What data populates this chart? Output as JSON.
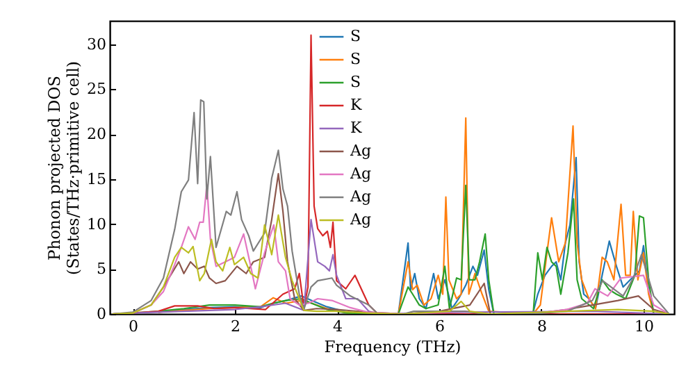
{
  "chart_data": {
    "type": "line",
    "xlabel": "Frequency (THz)",
    "ylabel": "Phonon projected DOS\n(States/THz·primitive cell)",
    "xlim": [
      -0.45,
      10.6
    ],
    "ylim": [
      0,
      32.6
    ],
    "xticks": [
      0,
      2,
      4,
      6,
      8,
      10
    ],
    "yticks": [
      0,
      5,
      10,
      15,
      20,
      25,
      30
    ],
    "grid": false,
    "legend": "top",
    "marker": "none",
    "series": [
      {
        "name": "S",
        "color": "#1f77b4",
        "x": [
          0.5,
          1,
          1.5,
          2,
          2.5,
          2.75,
          3,
          3.3,
          3.5,
          3.8,
          4.2,
          5.2,
          5.39,
          5.44,
          5.52,
          5.61,
          5.74,
          5.89,
          5.98,
          6.11,
          6.25,
          6.38,
          6.52,
          6.66,
          6.75,
          6.88,
          6.97,
          7.07,
          7.84,
          7.93,
          8.07,
          8.2,
          8.29,
          8.38,
          8.47,
          8.56,
          8.68,
          8.74,
          8.83,
          8.93,
          9.06,
          9.19,
          9.33,
          9.47,
          9.6,
          9.74,
          9.92,
          10.0,
          10.1,
          10.2,
          10.5
        ],
        "values": [
          0.2,
          0.5,
          0.7,
          0.8,
          0.7,
          1.2,
          1.5,
          2,
          1.5,
          0.8,
          0.2,
          0,
          7.9,
          2.7,
          4.5,
          1.7,
          0.6,
          4.5,
          1.7,
          3.8,
          0.6,
          1.7,
          3.2,
          5.3,
          4.3,
          7.1,
          2.7,
          0,
          0.2,
          2.2,
          4.3,
          5.3,
          5.8,
          3.8,
          7.9,
          9.9,
          17.4,
          5.8,
          2.2,
          1.7,
          0.6,
          4.3,
          8.1,
          5.3,
          3,
          3.8,
          4.8,
          7.6,
          2.7,
          0,
          0
        ]
      },
      {
        "name": "S",
        "color": "#ff7f0e",
        "x": [
          0.5,
          1,
          1.5,
          2,
          2.5,
          2.75,
          3,
          3.3,
          3.5,
          3.8,
          4.2,
          5.2,
          5.39,
          5.48,
          5.57,
          5.7,
          5.84,
          5.98,
          6.07,
          6.13,
          6.19,
          6.34,
          6.43,
          6.52,
          6.58,
          6.7,
          6.84,
          6.97,
          7.84,
          7.98,
          8.11,
          8.2,
          8.34,
          8.47,
          8.62,
          8.7,
          8.79,
          8.93,
          9.06,
          9.19,
          9.29,
          9.42,
          9.56,
          9.65,
          9.74,
          9.8,
          9.89,
          10.0,
          10.1,
          10.2,
          10.5
        ],
        "values": [
          0.2,
          0.4,
          0.6,
          0.7,
          0.8,
          1.8,
          1.2,
          1.5,
          1.2,
          0.6,
          0.1,
          0,
          5.8,
          2.7,
          3.2,
          1,
          1.7,
          4.3,
          2.2,
          13,
          3.8,
          1.7,
          2.2,
          21.8,
          2.2,
          4.5,
          2.2,
          0.3,
          0,
          1,
          6.8,
          10.7,
          5.8,
          7.9,
          20.9,
          7.9,
          3.8,
          1.7,
          0.6,
          6.3,
          5.8,
          3.8,
          12.2,
          4.3,
          4.3,
          11.4,
          3.8,
          6.8,
          2.2,
          0,
          0
        ]
      },
      {
        "name": "S",
        "color": "#2ca02c",
        "x": [
          -0.4,
          0,
          0.5,
          1,
          1.5,
          2,
          2.5,
          2.75,
          3,
          3.3,
          3.5,
          3.8,
          4.2,
          5.2,
          5.39,
          5.48,
          5.61,
          5.74,
          5.98,
          6.11,
          6.2,
          6.34,
          6.43,
          6.52,
          6.59,
          6.7,
          6.79,
          6.9,
          6.97,
          7.07,
          7.84,
          7.93,
          8.02,
          8.11,
          8.2,
          8.29,
          8.38,
          8.52,
          8.63,
          8.7,
          8.79,
          9.02,
          9.19,
          9.33,
          9.47,
          9.65,
          9.83,
          9.92,
          10.0,
          10.1,
          10.2,
          10.5
        ],
        "values": [
          0,
          0.1,
          0.3,
          0.6,
          1,
          1,
          0.8,
          1.2,
          1.5,
          1.7,
          1.2,
          0.5,
          0.1,
          0,
          3,
          2.2,
          1,
          0.6,
          1,
          5.3,
          0.6,
          4,
          3.8,
          14.3,
          3.8,
          3.8,
          5.8,
          8.9,
          3.8,
          0,
          0,
          6.8,
          3.8,
          7.4,
          5.8,
          5.3,
          2.2,
          6.8,
          12.8,
          3.8,
          1.7,
          0.6,
          3.8,
          2.7,
          2.2,
          1.7,
          4.3,
          10.9,
          10.7,
          3.8,
          0,
          0
        ]
      },
      {
        "name": "K",
        "color": "#d62728",
        "x": [
          -0.4,
          0,
          0.5,
          0.82,
          1.27,
          1.6,
          2,
          2.3,
          2.6,
          2.94,
          3.17,
          3.26,
          3.35,
          3.43,
          3.49,
          3.55,
          3.62,
          3.72,
          3.81,
          3.87,
          3.92,
          3.99,
          4.17,
          4.35,
          4.44,
          4.62,
          4.8,
          10.5
        ],
        "values": [
          0,
          0.1,
          0.3,
          0.9,
          0.9,
          0.6,
          0.7,
          0.6,
          0.5,
          2.2,
          2.8,
          4.5,
          0.7,
          3,
          31,
          12,
          9.5,
          8.7,
          9.2,
          7.4,
          10.2,
          3.7,
          2.8,
          4.3,
          3.2,
          1,
          0,
          0
        ]
      },
      {
        "name": "K",
        "color": "#9467bd",
        "x": [
          -0.4,
          0,
          0.5,
          1,
          1.5,
          2,
          2.5,
          2.99,
          3.35,
          3.49,
          3.62,
          3.76,
          3.85,
          3.92,
          3.99,
          4.17,
          4.4,
          4.62,
          4.8,
          6.5,
          9,
          10.5
        ],
        "values": [
          0,
          0.1,
          0.2,
          0.3,
          0.4,
          0.5,
          0.8,
          1.2,
          0.4,
          10.5,
          5.8,
          5.3,
          4.8,
          6.6,
          4.3,
          1.7,
          1.7,
          0.3,
          0,
          0.2,
          0.3,
          0
        ]
      },
      {
        "name": "Ag",
        "color": "#8c564b",
        "x": [
          -0.4,
          0,
          0.36,
          0.6,
          0.9,
          1.0,
          1.13,
          1.27,
          1.4,
          1.5,
          1.63,
          1.81,
          2.04,
          2.22,
          2.36,
          2.58,
          2.72,
          2.85,
          2.94,
          3.03,
          3.17,
          3.35,
          3.6,
          4.0,
          4.6,
          5.3,
          6.0,
          6.6,
          6.88,
          7.0,
          7.8,
          8.5,
          9.0,
          9.5,
          9.9,
          10.2,
          10.5
        ],
        "values": [
          0,
          0.1,
          1,
          3,
          5.8,
          4.5,
          5.8,
          5,
          5.3,
          4,
          3.4,
          3.7,
          5.3,
          4.5,
          5.8,
          6.3,
          10.5,
          15.6,
          11.4,
          5.8,
          1.7,
          0.4,
          0.6,
          0.5,
          0.2,
          0,
          0.3,
          1,
          3.4,
          0,
          0,
          0.5,
          1,
          1.5,
          2,
          0.5,
          0
        ]
      },
      {
        "name": "Ag",
        "color": "#e377c2",
        "x": [
          -0.4,
          0,
          0.36,
          0.6,
          0.82,
          0.95,
          1.09,
          1.22,
          1.31,
          1.38,
          1.45,
          1.52,
          1.63,
          1.81,
          1.99,
          2.17,
          2.31,
          2.4,
          2.58,
          2.76,
          2.85,
          2.99,
          3.08,
          3.26,
          3.44,
          3.62,
          3.9,
          4.26,
          4.6,
          5.3,
          6.5,
          7.0,
          7.8,
          8.5,
          8.9,
          9.05,
          9.3,
          9.56,
          10.0,
          10.2,
          10.5
        ],
        "values": [
          0,
          0.1,
          1,
          2.5,
          5.5,
          7.4,
          9.7,
          8.3,
          10.2,
          10.2,
          14.4,
          8.3,
          5.3,
          5.8,
          6.3,
          8.9,
          5.3,
          2.8,
          6.8,
          9.9,
          5.8,
          4.8,
          1.7,
          1,
          1.2,
          1.7,
          1.5,
          0.7,
          0.2,
          0,
          0.3,
          0,
          0,
          0.5,
          1.2,
          2.8,
          2,
          4,
          4.3,
          1,
          0
        ]
      },
      {
        "name": "Ag",
        "color": "#7f7f7f",
        "x": [
          -0.4,
          0,
          0.36,
          0.6,
          0.82,
          0.95,
          1.09,
          1.2,
          1.27,
          1.33,
          1.39,
          1.45,
          1.52,
          1.63,
          1.83,
          1.92,
          2.04,
          2.13,
          2.27,
          2.36,
          2.58,
          2.72,
          2.85,
          2.94,
          3.03,
          3.12,
          3.26,
          3.35,
          3.49,
          3.62,
          3.9,
          3.99,
          4.26,
          4.62,
          4.8,
          5.3,
          5.5,
          6.0,
          6.5,
          6.9,
          7.8,
          8.5,
          8.8,
          9.0,
          9.2,
          9.6,
          9.8,
          9.96,
          10.2,
          10.5
        ],
        "values": [
          0,
          0.2,
          1.5,
          4,
          9.4,
          13.6,
          14.9,
          22.4,
          14.5,
          23.8,
          23.6,
          12.8,
          17.5,
          7.4,
          11.4,
          11,
          13.6,
          10.5,
          8.7,
          7,
          9,
          15.1,
          18.2,
          13.9,
          12,
          7,
          2.2,
          0.5,
          3,
          3.7,
          4,
          3.2,
          2,
          1,
          0,
          0,
          0.3,
          0.3,
          0.3,
          0,
          0,
          0.3,
          1,
          1.5,
          3.7,
          2,
          4,
          6.6,
          2,
          0
        ]
      },
      {
        "name": "Ag",
        "color": "#bcbd22",
        "x": [
          -0.4,
          0,
          0.36,
          0.6,
          0.82,
          0.95,
          1.09,
          1.18,
          1.31,
          1.4,
          1.54,
          1.63,
          1.76,
          1.9,
          1.99,
          2.17,
          2.31,
          2.45,
          2.58,
          2.72,
          2.85,
          2.99,
          3.12,
          3.26,
          3.35,
          3.6,
          4.0,
          4.6,
          5.3,
          6.2,
          6.43,
          6.6,
          7.0,
          8.5,
          9.5,
          10.2,
          10.5
        ],
        "values": [
          0,
          0.1,
          1,
          3,
          6.3,
          7.4,
          6.8,
          7.5,
          3.7,
          4.5,
          8.3,
          5.8,
          4.8,
          7.4,
          5.5,
          6.3,
          4.5,
          4,
          9.9,
          6.6,
          11,
          6.3,
          3.7,
          1.7,
          0.4,
          0.3,
          0.3,
          0.1,
          0,
          0.3,
          1.4,
          0.3,
          0,
          0.3,
          0.5,
          0.3,
          0
        ]
      }
    ]
  }
}
